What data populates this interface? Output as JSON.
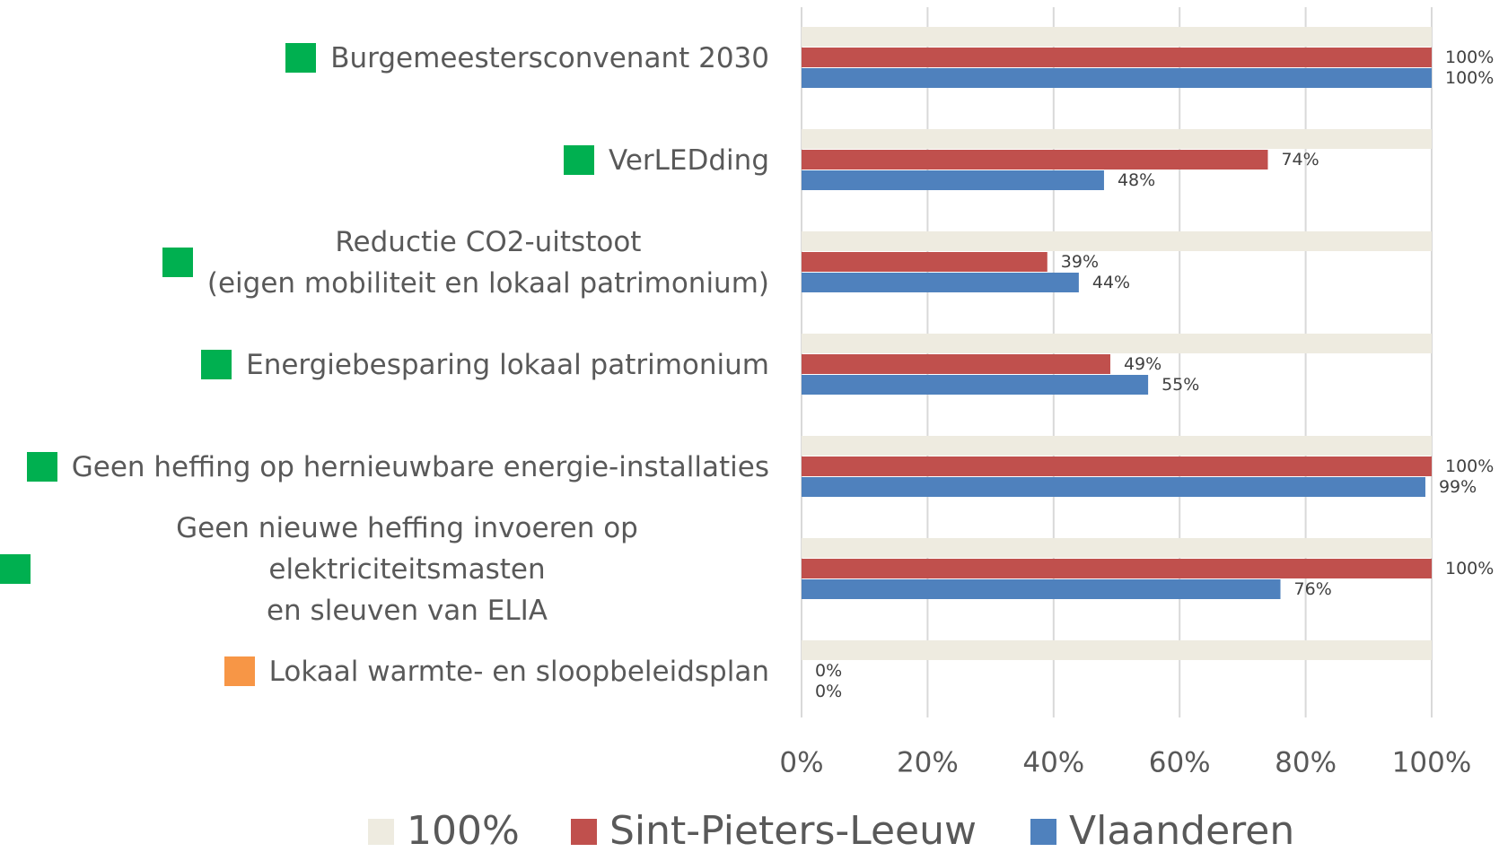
{
  "chart_data": {
    "type": "bar",
    "orientation": "horizontal",
    "categories": [
      "Burgemeestersconvenant 2030",
      "VerLEDding",
      "Reductie CO2-uitstoot\n(eigen mobiliteit en lokaal patrimonium)",
      "Energiebesparing lokaal patrimonium",
      "Geen heffing op hernieuwbare energie-installaties",
      "Geen nieuwe heffing invoeren op elektriciteitsmasten\nen sleuven van ELIA",
      "Lokaal warmte- en sloopbeleidsplan"
    ],
    "marker_colors": [
      "#00b050",
      "#00b050",
      "#00b050",
      "#00b050",
      "#00b050",
      "#00b050",
      "#f79646"
    ],
    "series": [
      {
        "name": "100%",
        "color": "#eeebe0",
        "values": [
          100,
          100,
          100,
          100,
          100,
          100,
          100
        ]
      },
      {
        "name": "Sint-Pieters-Leeuw",
        "color": "#c0504d",
        "values": [
          100,
          74,
          39,
          49,
          100,
          100,
          0
        ],
        "value_labels": [
          "100%",
          "74%",
          "39%",
          "49%",
          "100%",
          "100%",
          "0%"
        ]
      },
      {
        "name": "Vlaanderen",
        "color": "#4f81bd",
        "values": [
          100,
          48,
          44,
          55,
          99,
          76,
          0
        ],
        "value_labels": [
          "100%",
          "48%",
          "44%",
          "55%",
          "99%",
          "76%",
          "0%"
        ]
      }
    ],
    "xlim": [
      0,
      100
    ],
    "xticks": [
      {
        "value": 0,
        "label": "0%"
      },
      {
        "value": 20,
        "label": "20%"
      },
      {
        "value": 40,
        "label": "40%"
      },
      {
        "value": 60,
        "label": "60%"
      },
      {
        "value": 80,
        "label": "80%"
      },
      {
        "value": 100,
        "label": "100%"
      }
    ],
    "grid": true,
    "legend": "bottom"
  }
}
